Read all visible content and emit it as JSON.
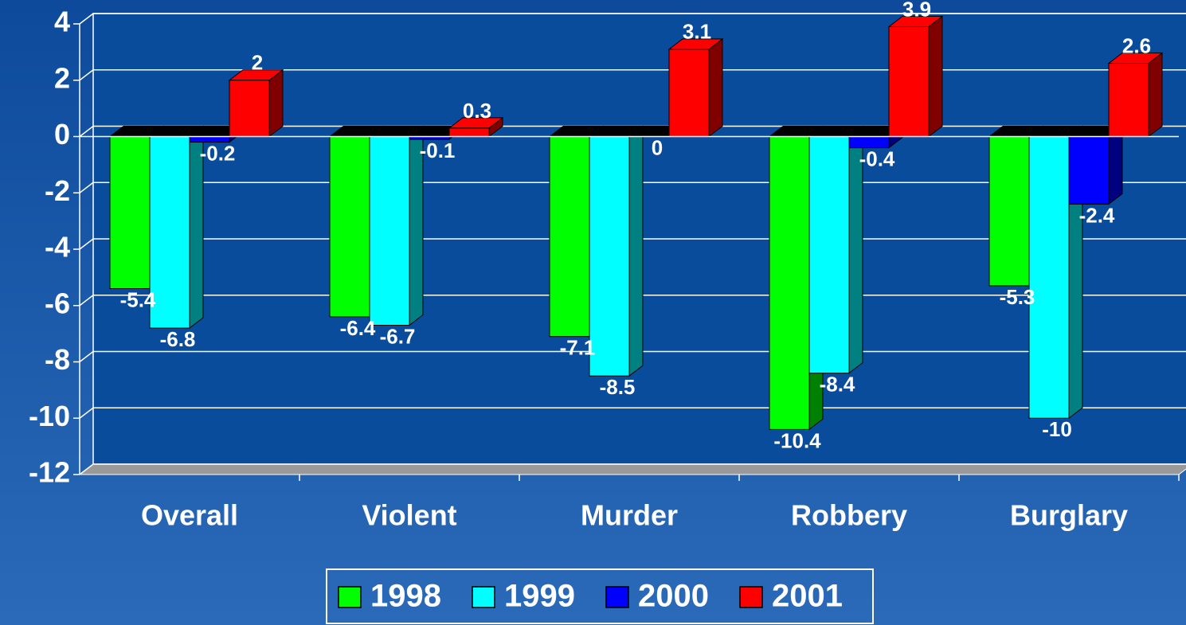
{
  "chart_data": {
    "type": "bar3d",
    "categories": [
      "Overall",
      "Violent",
      "Murder",
      "Robbery",
      "Burglary"
    ],
    "series": [
      {
        "name": "1998",
        "color": "#00ff00",
        "values": [
          -5.4,
          -6.4,
          -7.1,
          -10.4,
          -5.3
        ]
      },
      {
        "name": "1999",
        "color": "#00ffff",
        "values": [
          -6.8,
          -6.7,
          -8.5,
          -8.4,
          -10
        ]
      },
      {
        "name": "2000",
        "color": "#0000ff",
        "values": [
          -0.2,
          -0.1,
          0,
          -0.4,
          -2.4
        ]
      },
      {
        "name": "2001",
        "color": "#ff0000",
        "values": [
          2,
          0.3,
          3.1,
          3.9,
          2.6
        ]
      }
    ],
    "ylim": [
      -12,
      4
    ],
    "yticks": [
      -12,
      -10,
      -8,
      -6,
      -4,
      -2,
      0,
      2,
      4
    ],
    "grid": true,
    "legend": "bottom"
  }
}
